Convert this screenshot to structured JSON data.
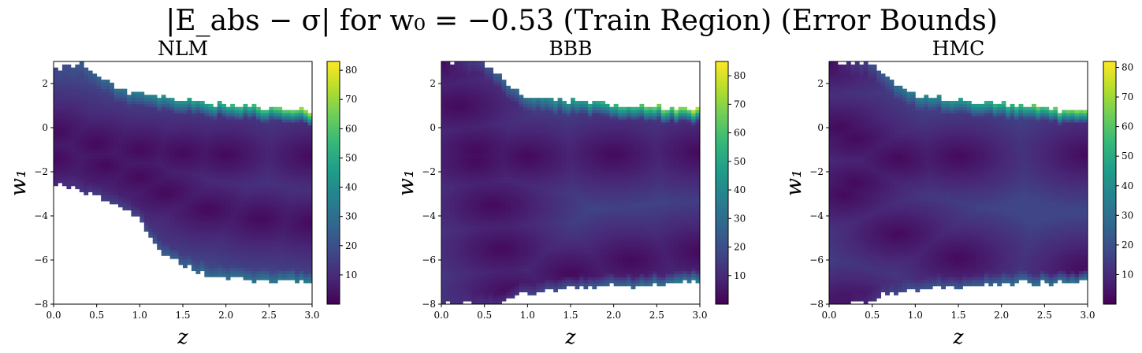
{
  "figure": {
    "title": "|E_abs − σ| for w₀ = −0.53 (Train Region) (Error Bounds)"
  },
  "chart_data": [
    {
      "type": "heatmap",
      "title": "NLM",
      "xlabel": "z",
      "ylabel": "w₁",
      "xlim": [
        0.0,
        3.0
      ],
      "ylim": [
        -8,
        3
      ],
      "xticks": [
        "0.0",
        "0.5",
        "1.0",
        "1.5",
        "2.0",
        "2.5",
        "3.0"
      ],
      "yticks": [
        "−8",
        "−6",
        "−4",
        "−2",
        "0",
        "2"
      ],
      "colorbar": {
        "min": 0,
        "max": 83,
        "ticks": [
          "10",
          "20",
          "30",
          "40",
          "50",
          "60",
          "70",
          "80"
        ]
      },
      "colormap": "viridis",
      "masked_region": "white (no value)",
      "features": {
        "upper_boundary": [
          [
            0.0,
            2.6
          ],
          [
            0.3,
            3.0
          ],
          [
            0.5,
            2.4
          ],
          [
            0.8,
            1.7
          ],
          [
            1.2,
            1.35
          ],
          [
            1.6,
            1.2
          ],
          [
            2.0,
            1.05
          ],
          [
            2.5,
            0.9
          ],
          [
            3.0,
            0.75
          ]
        ],
        "lower_boundary": [
          [
            0.0,
            -2.5
          ],
          [
            0.4,
            -3.0
          ],
          [
            0.8,
            -3.6
          ],
          [
            1.0,
            -4.2
          ],
          [
            1.2,
            -5.5
          ],
          [
            1.5,
            -6.2
          ],
          [
            1.8,
            -6.7
          ],
          [
            2.2,
            -6.9
          ],
          [
            3.0,
            -7.0
          ]
        ],
        "low_error_curves": [
          [
            [
              0.0,
              -0.2
            ],
            [
              0.5,
              -0.7
            ],
            [
              1.0,
              -1.0
            ],
            [
              1.5,
              -1.15
            ],
            [
              2.0,
              -1.2
            ],
            [
              3.0,
              -1.25
            ]
          ],
          [
            [
              0.0,
              -1.4
            ],
            [
              0.6,
              -1.7
            ],
            [
              1.0,
              -2.2
            ],
            [
              1.3,
              -2.9
            ],
            [
              1.8,
              -3.7
            ],
            [
              2.4,
              -4.1
            ],
            [
              3.0,
              -4.3
            ]
          ]
        ],
        "peak_edge_value": 83
      }
    },
    {
      "type": "heatmap",
      "title": "BBB",
      "xlabel": "z",
      "ylabel": "w₁",
      "xlim": [
        0.0,
        3.0
      ],
      "ylim": [
        -8,
        3
      ],
      "xticks": [
        "0.0",
        "0.5",
        "1.0",
        "1.5",
        "2.0",
        "2.5",
        "3.0"
      ],
      "yticks": [
        "−8",
        "−6",
        "−4",
        "−2",
        "0",
        "2"
      ],
      "colorbar": {
        "min": 0,
        "max": 85,
        "ticks": [
          "10",
          "20",
          "30",
          "40",
          "50",
          "60",
          "70",
          "80"
        ]
      },
      "colormap": "viridis",
      "masked_region": "white (no value)",
      "features": {
        "upper_boundary": [
          [
            0.0,
            3.0
          ],
          [
            0.45,
            3.0
          ],
          [
            0.6,
            2.6
          ],
          [
            0.8,
            1.9
          ],
          [
            1.0,
            1.45
          ],
          [
            1.5,
            1.2
          ],
          [
            2.0,
            1.05
          ],
          [
            2.5,
            0.9
          ],
          [
            3.0,
            0.75
          ]
        ],
        "lower_boundary": [
          [
            0.0,
            -8.0
          ],
          [
            0.6,
            -8.0
          ],
          [
            0.8,
            -7.7
          ],
          [
            1.0,
            -7.5
          ],
          [
            1.5,
            -7.3
          ],
          [
            2.0,
            -7.2
          ],
          [
            2.5,
            -7.1
          ],
          [
            3.0,
            -7.0
          ]
        ],
        "low_error_curves": [
          [
            [
              0.0,
              3.0
            ],
            [
              0.2,
              1.0
            ],
            [
              0.4,
              -1.5
            ],
            [
              0.6,
              -3.5
            ],
            [
              0.7,
              -5.5
            ],
            [
              0.8,
              -8.0
            ]
          ],
          [
            [
              0.4,
              -1.0
            ],
            [
              1.0,
              -1.3
            ],
            [
              2.0,
              -1.2
            ],
            [
              3.0,
              -1.1
            ]
          ],
          [
            [
              0.8,
              -7.5
            ],
            [
              1.5,
              -6.6
            ],
            [
              2.2,
              -6.0
            ],
            [
              3.0,
              -5.6
            ]
          ]
        ],
        "peak_edge_value": 85
      }
    },
    {
      "type": "heatmap",
      "title": "HMC",
      "xlabel": "z",
      "ylabel": "w₁",
      "xlim": [
        0.0,
        3.0
      ],
      "ylim": [
        -8,
        3
      ],
      "xticks": [
        "0.0",
        "0.5",
        "1.0",
        "1.5",
        "2.0",
        "2.5",
        "3.0"
      ],
      "yticks": [
        "−8",
        "−6",
        "−4",
        "−2",
        "0",
        "2"
      ],
      "colorbar": {
        "min": 0,
        "max": 82,
        "ticks": [
          "10",
          "20",
          "30",
          "40",
          "50",
          "60",
          "70",
          "80"
        ]
      },
      "colormap": "viridis",
      "masked_region": "white (no value)",
      "features": {
        "upper_boundary": [
          [
            0.0,
            3.0
          ],
          [
            0.45,
            3.0
          ],
          [
            0.6,
            2.6
          ],
          [
            0.8,
            1.9
          ],
          [
            1.0,
            1.5
          ],
          [
            1.5,
            1.25
          ],
          [
            2.0,
            1.05
          ],
          [
            2.5,
            0.9
          ],
          [
            3.0,
            0.7
          ]
        ],
        "lower_boundary": [
          [
            0.0,
            -8.0
          ],
          [
            0.45,
            -8.0
          ],
          [
            0.6,
            -7.6
          ],
          [
            1.0,
            -7.3
          ],
          [
            1.5,
            -7.2
          ],
          [
            2.0,
            -7.1
          ],
          [
            2.5,
            -7.05
          ],
          [
            3.0,
            -7.0
          ]
        ],
        "low_error_curves": [
          [
            [
              0.0,
              3.0
            ],
            [
              0.12,
              0.0
            ],
            [
              0.18,
              -3.0
            ],
            [
              0.25,
              -8.0
            ]
          ],
          [
            [
              0.3,
              -0.5
            ],
            [
              0.8,
              -1.4
            ],
            [
              1.5,
              -1.3
            ],
            [
              3.0,
              -1.2
            ]
          ],
          [
            [
              0.3,
              -2.5
            ],
            [
              0.8,
              -4.8
            ],
            [
              1.5,
              -5.9
            ],
            [
              3.0,
              -6.4
            ]
          ]
        ],
        "peak_edge_value": 82
      }
    }
  ]
}
